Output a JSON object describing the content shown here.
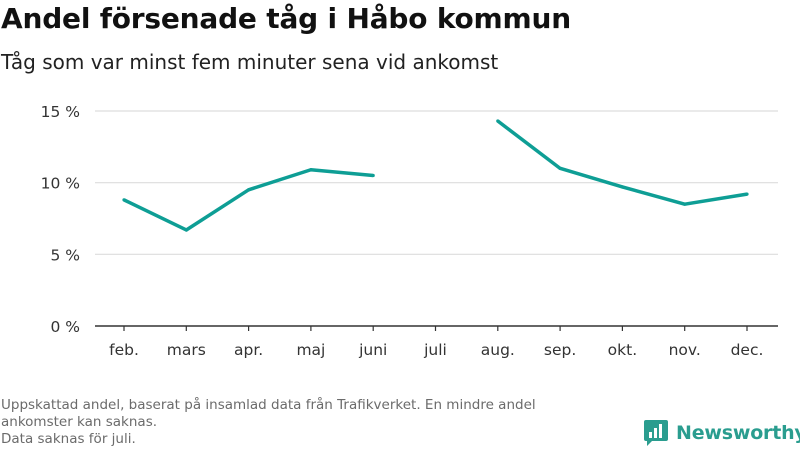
{
  "header": {
    "title": "Andel försenade tåg i Håbo kommun",
    "subtitle": "Tåg som var minst fem minuter sena vid ankomst"
  },
  "footer": {
    "note_lines": [
      "Uppskattad andel, baserat på insamlad data från Trafikverket. En mindre andel",
      "ankomster kan saknas.",
      "Data saknas för juli."
    ]
  },
  "brand": {
    "name": "Newsworthy",
    "icon": "newsworthy-logo-icon",
    "color": "#2a9d8f"
  },
  "chart_data": {
    "type": "line",
    "categories": [
      "feb.",
      "mars",
      "apr.",
      "maj",
      "juni",
      "juli",
      "aug.",
      "sep.",
      "okt.",
      "nov.",
      "dec."
    ],
    "series": [
      {
        "values": [
          8.8,
          6.7,
          9.5,
          10.9,
          10.5,
          null,
          14.3,
          11.0,
          9.7,
          8.5,
          9.2
        ],
        "color": "#0e9e95"
      }
    ],
    "ylim": [
      0,
      15
    ],
    "yticks": [
      0,
      5,
      10,
      15
    ],
    "ytick_labels": [
      "0 %",
      "5 %",
      "10 %",
      "15 %"
    ],
    "grid": true,
    "xlabel": "",
    "ylabel": ""
  }
}
